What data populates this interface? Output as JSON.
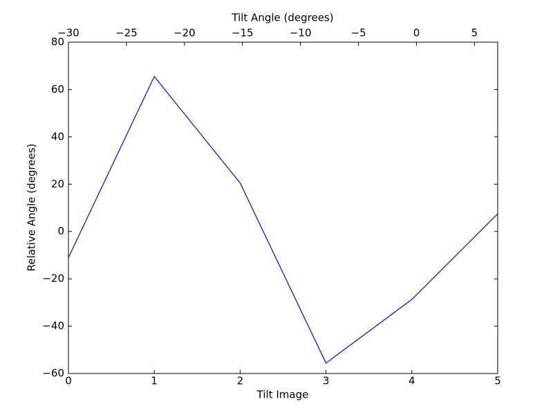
{
  "chart_data": {
    "type": "line",
    "xlabel": "Tilt Image",
    "ylabel": "Relative Angle (degrees)",
    "x2label": "Tilt Angle (degrees)",
    "x": [
      0,
      1,
      2,
      3,
      4,
      5
    ],
    "series": [
      {
        "color": "#0000ff",
        "values": [
          -11,
          65.5,
          20.5,
          -55.6,
          -28.7,
          7.5
        ]
      }
    ],
    "xlim": [
      0,
      5
    ],
    "xticks": [
      0,
      1,
      2,
      3,
      4,
      5
    ],
    "x2lim": [
      -30,
      7
    ],
    "x2ticks": [
      {
        "value": -30,
        "label": "−30"
      },
      {
        "value": -25,
        "label": "−25"
      },
      {
        "value": -20,
        "label": "−20"
      },
      {
        "value": -15,
        "label": "−15"
      },
      {
        "value": -10,
        "label": "−10"
      },
      {
        "value": -5,
        "label": "−5"
      },
      0,
      5
    ],
    "ylim": [
      -60,
      80
    ],
    "yticks": [
      {
        "value": -60,
        "label": "−60"
      },
      {
        "value": -40,
        "label": "−40"
      },
      {
        "value": -20,
        "label": "−20"
      },
      0,
      20,
      40,
      60,
      80
    ]
  }
}
